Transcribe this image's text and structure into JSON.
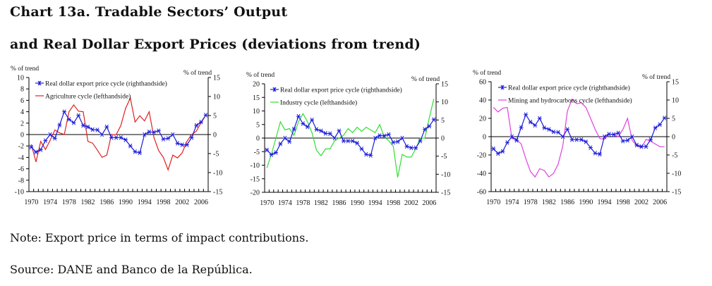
{
  "title_line1": "Chart 13a.  Tradable Sectors’ Output",
  "title_line2": "and Real Dollar Export Prices (deviations from trend)",
  "note": "Note: Export price in terms of impact contributions.",
  "source": "Source: DANE and Banco de la República.",
  "colors": {
    "export_price": "#1a1adc",
    "agriculture": "#e02020",
    "industry": "#33dd33",
    "mining": "#e040e0",
    "axis": "#000000"
  },
  "chart_data": [
    {
      "type": "line",
      "left_unit_label": "% of trend",
      "right_unit_label": "% of trend",
      "x": [
        1970,
        1971,
        1972,
        1973,
        1974,
        1975,
        1976,
        1977,
        1978,
        1979,
        1980,
        1981,
        1982,
        1983,
        1984,
        1985,
        1986,
        1987,
        1988,
        1989,
        1990,
        1991,
        1992,
        1993,
        1994,
        1995,
        1996,
        1997,
        1998,
        1999,
        2000,
        2001,
        2002,
        2003,
        2004,
        2005,
        2006,
        2007
      ],
      "x_tick_labels": [
        "1970",
        "1974",
        "1978",
        "1982",
        "1986",
        "1990",
        "1994",
        "1998",
        "2002",
        "2006"
      ],
      "ylim_left": [
        -10,
        10
      ],
      "yticks_left": [
        "10",
        "8",
        "6",
        "4",
        "2",
        "0",
        "-2",
        "-4",
        "-6",
        "-8",
        "-10"
      ],
      "ylim_right": [
        -15,
        15
      ],
      "yticks_right": [
        "15",
        "10",
        "5",
        "0",
        "-5",
        "-10",
        "-15"
      ],
      "legend_position": "top",
      "series": [
        {
          "name": "Real dollar export price cycle (righthandside)",
          "axis": "right",
          "marker": "asterisk",
          "values": [
            -3.3,
            -4.6,
            -4.0,
            -1.6,
            0.0,
            -1.0,
            2.5,
            6.0,
            4.0,
            3.1,
            5.0,
            2.4,
            2.0,
            1.3,
            1.2,
            0.0,
            2.0,
            -0.8,
            -0.8,
            -0.8,
            -1.4,
            -3.0,
            -4.5,
            -4.8,
            0.0,
            0.7,
            0.6,
            1.0,
            -1.2,
            -1.0,
            0.0,
            -2.3,
            -2.7,
            -2.7,
            -0.8,
            2.4,
            3.3,
            5.1
          ]
        },
        {
          "name": "Agriculture cycle (lefthandside)",
          "axis": "left",
          "marker": "none",
          "values": [
            -1.7,
            -4.8,
            -1.2,
            -2.6,
            -1.0,
            0.8,
            0.3,
            0.0,
            4.0,
            5.2,
            4.1,
            4.0,
            -1.2,
            -1.5,
            -2.7,
            -4.0,
            -3.6,
            0.0,
            0.0,
            1.6,
            4.6,
            6.4,
            2.2,
            3.3,
            2.4,
            4.0,
            -0.5,
            -2.8,
            -4.0,
            -6.2,
            -3.6,
            -4.1,
            -3.2,
            -1.2,
            0.0,
            0.6,
            2.1,
            3.4
          ]
        }
      ]
    },
    {
      "type": "line",
      "left_unit_label": "% of trend",
      "right_unit_label": "% of trend",
      "x": [
        1970,
        1971,
        1972,
        1973,
        1974,
        1975,
        1976,
        1977,
        1978,
        1979,
        1980,
        1981,
        1982,
        1983,
        1984,
        1985,
        1986,
        1987,
        1988,
        1989,
        1990,
        1991,
        1992,
        1993,
        1994,
        1995,
        1996,
        1997,
        1998,
        1999,
        2000,
        2001,
        2002,
        2003,
        2004,
        2005,
        2006,
        2007
      ],
      "x_tick_labels": [
        "1970",
        "1974",
        "1978",
        "1982",
        "1986",
        "1990",
        "1994",
        "1998",
        "2002",
        "2006"
      ],
      "ylim_left": [
        -20,
        20
      ],
      "yticks_left": [
        "20",
        "15",
        "10",
        "5",
        "0",
        "-5",
        "-10",
        "-15",
        "-20"
      ],
      "ylim_right": [
        -15,
        15
      ],
      "yticks_right": [
        "15",
        "10",
        "5",
        "0",
        "-5",
        "-10",
        "-15"
      ],
      "legend_position": "top",
      "series": [
        {
          "name": "Real dollar export price cycle (righthandside)",
          "axis": "right",
          "marker": "asterisk",
          "values": [
            -3.3,
            -4.6,
            -4.0,
            -1.6,
            0.0,
            -1.0,
            2.5,
            6.0,
            4.0,
            3.1,
            5.0,
            2.4,
            2.0,
            1.3,
            1.2,
            0.0,
            2.0,
            -0.8,
            -0.8,
            -0.8,
            -1.4,
            -3.0,
            -4.5,
            -4.8,
            0.0,
            0.7,
            0.6,
            1.0,
            -1.2,
            -1.0,
            0.0,
            -2.3,
            -2.7,
            -2.7,
            -0.8,
            2.4,
            3.3,
            5.1
          ]
        },
        {
          "name": "Industry cycle (lefthandside)",
          "axis": "left",
          "marker": "none",
          "values": [
            -11.0,
            -6.0,
            0.0,
            6.0,
            3.0,
            3.5,
            1.0,
            6.0,
            9.0,
            6.0,
            2.0,
            -4.5,
            -6.5,
            -4.0,
            -4.0,
            -1.0,
            0.0,
            1.0,
            3.5,
            2.0,
            4.0,
            2.5,
            4.0,
            3.0,
            2.0,
            5.0,
            0.5,
            -1.0,
            -3.0,
            -14.5,
            -6.0,
            -7.0,
            -7.0,
            -4.0,
            0.0,
            0.0,
            7.5,
            14.5
          ]
        }
      ]
    },
    {
      "type": "line",
      "left_unit_label": "% of trend",
      "right_unit_label": "% of trend",
      "x": [
        1970,
        1971,
        1972,
        1973,
        1974,
        1975,
        1976,
        1977,
        1978,
        1979,
        1980,
        1981,
        1982,
        1983,
        1984,
        1985,
        1986,
        1987,
        1988,
        1989,
        1990,
        1991,
        1992,
        1993,
        1994,
        1995,
        1996,
        1997,
        1998,
        1999,
        2000,
        2001,
        2002,
        2003,
        2004,
        2005,
        2006,
        2007
      ],
      "x_tick_labels": [
        "1970",
        "1974",
        "1978",
        "1982",
        "1986",
        "1990",
        "1994",
        "1998",
        "2002",
        "2006"
      ],
      "ylim_left": [
        -60,
        60
      ],
      "yticks_left": [
        "60",
        "40",
        "20",
        "0",
        "-20",
        "-40",
        "-60"
      ],
      "ylim_right": [
        -15,
        15
      ],
      "yticks_right": [
        "15",
        "10",
        "5",
        "0",
        "-5",
        "-10",
        "-15"
      ],
      "legend_position": "top",
      "series": [
        {
          "name": "Real dollar export price cycle (righthandside)",
          "axis": "right",
          "marker": "asterisk",
          "values": [
            -3.3,
            -4.6,
            -4.0,
            -1.6,
            0.0,
            -1.0,
            2.5,
            6.0,
            4.0,
            3.1,
            5.0,
            2.4,
            2.0,
            1.3,
            1.2,
            0.0,
            2.0,
            -0.8,
            -0.8,
            -0.8,
            -1.4,
            -3.0,
            -4.5,
            -4.8,
            0.0,
            0.7,
            0.6,
            1.0,
            -1.2,
            -1.0,
            0.0,
            -2.3,
            -2.7,
            -2.7,
            -0.8,
            2.4,
            3.3,
            5.1
          ]
        },
        {
          "name": "Mining and hydrocarbons cycle (lefthandside)",
          "axis": "left",
          "marker": "none",
          "values": [
            32,
            27,
            31,
            32,
            -2,
            -3,
            -8,
            -24,
            -38,
            -44,
            -35,
            -37,
            -44,
            -40,
            -30,
            -10,
            28,
            41,
            36,
            37,
            32,
            20,
            8,
            -2,
            -3,
            3,
            2,
            0,
            8,
            20,
            -4,
            -10,
            -12,
            -3,
            -5,
            -8,
            -11,
            -11
          ]
        }
      ]
    }
  ]
}
